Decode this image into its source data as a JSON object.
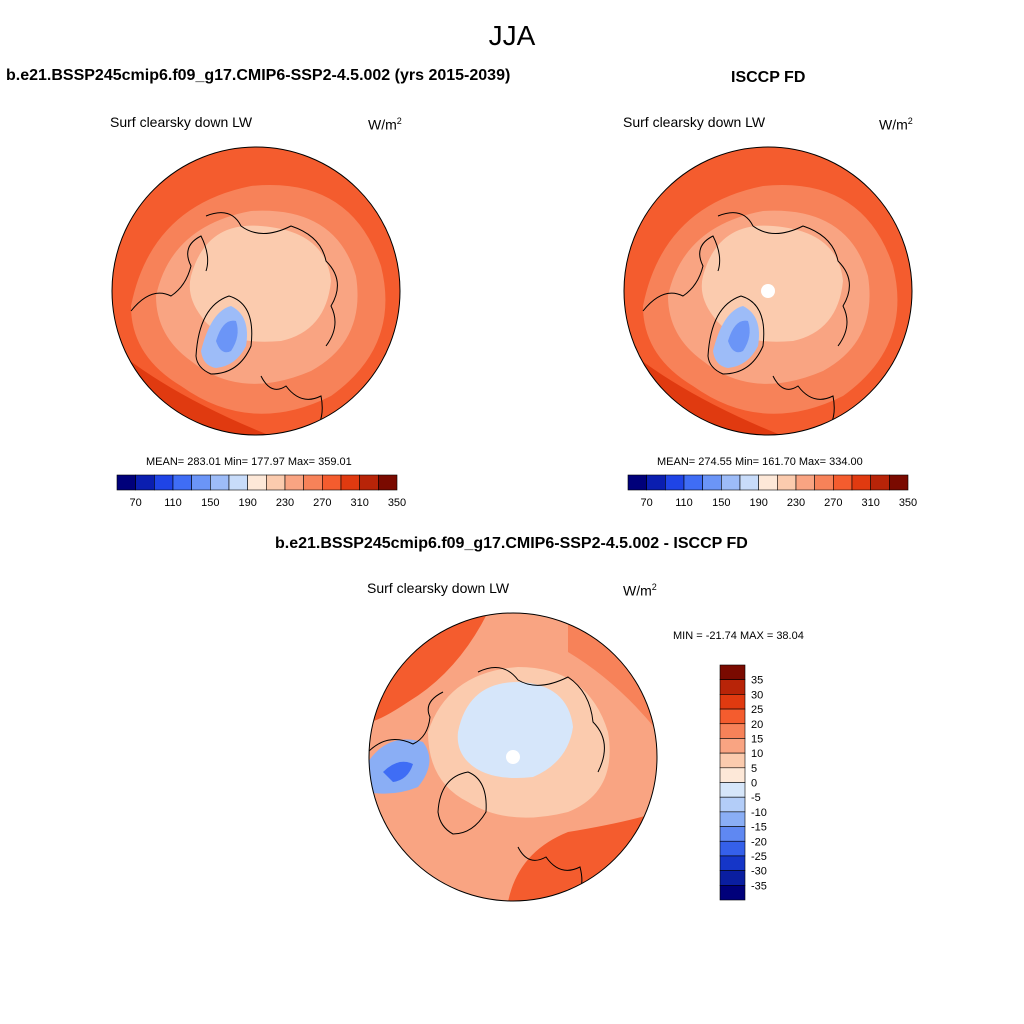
{
  "season": "JJA",
  "panels": [
    {
      "id": "model",
      "title": "b.e21.BSSP245cmip6.f09_g17.CMIP6-SSP2-4.5.002 (yrs 2015-2039)",
      "variable": "Surf clearsky down LW",
      "units_base": "W/m",
      "units_exp": "2",
      "stats": "MEAN= 283.01  Min= 177.97  Max= 359.01",
      "pole_hole": false
    },
    {
      "id": "obs",
      "title": "ISCCP FD",
      "variable": "Surf clearsky down LW",
      "units_base": "W/m",
      "units_exp": "2",
      "stats": "MEAN= 274.55  Min= 161.70  Max= 334.00",
      "pole_hole": true
    },
    {
      "id": "diff",
      "title": "b.e21.BSSP245cmip6.f09_g17.CMIP6-SSP2-4.5.002 - ISCCP FD",
      "variable": "Surf clearsky down LW",
      "units_base": "W/m",
      "units_exp": "2",
      "stats": "MIN = -21.74 MAX =  38.04",
      "pole_hole": true
    }
  ],
  "colorbar_abs": {
    "labels": [
      "70",
      "110",
      "150",
      "190",
      "230",
      "270",
      "310",
      "350"
    ],
    "colors": [
      "#00007a",
      "#0a1eb0",
      "#1f44e6",
      "#3f6df5",
      "#6b95f7",
      "#9dbcf8",
      "#c8dcfa",
      "#fde8d8",
      "#fbcbae",
      "#f9a482",
      "#f78259",
      "#f45c2e",
      "#e03a10",
      "#b82408",
      "#7a0a00"
    ]
  },
  "colorbar_diff": {
    "labels": [
      "35",
      "30",
      "25",
      "20",
      "15",
      "10",
      "5",
      "0",
      "-5",
      "-10",
      "-15",
      "-20",
      "-25",
      "-30",
      "-35"
    ],
    "colors": [
      "#7a0a00",
      "#b82408",
      "#e03a10",
      "#f45c2e",
      "#f78259",
      "#f9a482",
      "#fbcbae",
      "#fde8d8",
      "#d6e6fa",
      "#b3cdf8",
      "#8aaef5",
      "#5f88f2",
      "#3560ea",
      "#1536c8",
      "#0a1ea0",
      "#00007a"
    ]
  },
  "map_colors": {
    "outer": "#f45c2e",
    "ring": "#f78259",
    "mid": "#f9a482",
    "inner": "#fbcbae",
    "deep": "#e03a10",
    "greenland_low": "#9dbcf8",
    "greenland_core": "#6b95f7",
    "diff_base": "#fbcbae",
    "diff_ocean": "#f9a482",
    "diff_warm": "#f78259",
    "diff_hot": "#f45c2e",
    "diff_cool": "#d6e6fa",
    "diff_cold": "#8aaef5",
    "coast": "#000000"
  }
}
